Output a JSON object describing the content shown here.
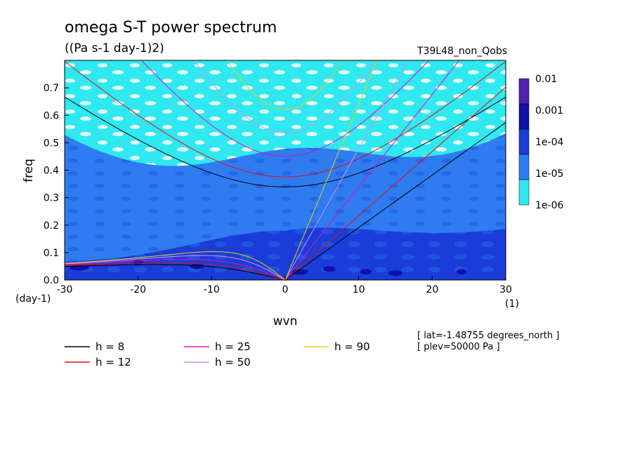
{
  "chart_data": {
    "type": "heatmap",
    "title": "omega S-T power spectrum",
    "subtitle": "((Pa s-1 day-1)2)",
    "run_label": "T39L48_non_Qobs",
    "xlabel": "wvn",
    "ylabel": "freq",
    "x_unit": "(1)",
    "y_unit": "(day-1)",
    "xlim": [
      -30,
      30
    ],
    "ylim": [
      0,
      0.8
    ],
    "x_ticks": [
      "-30",
      "-20",
      "-10",
      "0",
      "10",
      "20",
      "30"
    ],
    "y_ticks": [
      "0.0",
      "0.1",
      "0.2",
      "0.3",
      "0.4",
      "0.5",
      "0.6",
      "0.7"
    ],
    "colorbar": {
      "labels": [
        "0.01",
        "0.001",
        "1e-04",
        "1e-05",
        "1e-06"
      ],
      "colors": [
        "#5020b0",
        "#1010a8",
        "#1a3cd8",
        "#2e7cf0",
        "#30e8f0"
      ]
    },
    "background_colors": {
      "low": "#30e8f0",
      "mid": "#2e7cf0",
      "high": "#1a3cd8",
      "very_high": "#1010a8",
      "none": "#ffffff"
    },
    "dispersion_curves": [
      {
        "name": "h =  8",
        "h": 8,
        "color": "#000000"
      },
      {
        "name": "h = 12",
        "h": 12,
        "color": "#e01010"
      },
      {
        "name": "h = 25",
        "h": 25,
        "color": "#e010c0"
      },
      {
        "name": "h = 50",
        "h": 50,
        "color": "#d890e8"
      },
      {
        "name": "h = 90",
        "h": 90,
        "color": "#e8d010"
      }
    ],
    "annotations": [
      "[ lat=-1.48755 degrees_north ]",
      "[ plev=50000 Pa ]"
    ]
  }
}
